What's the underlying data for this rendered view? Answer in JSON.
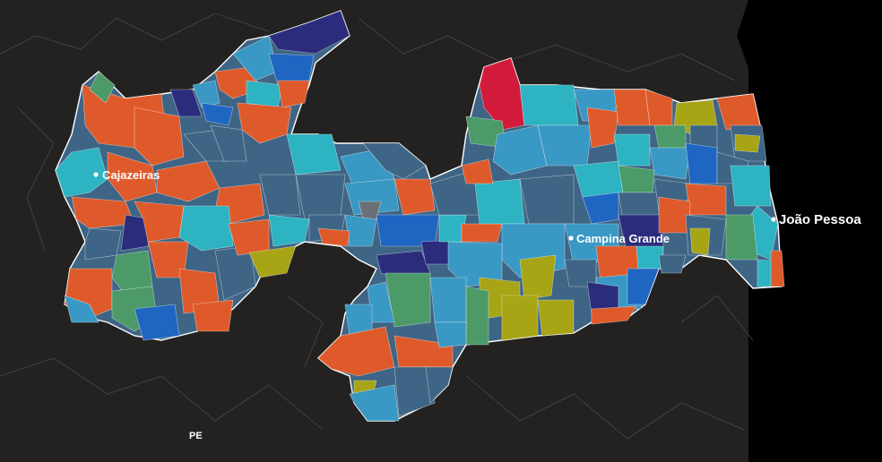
{
  "map": {
    "cities": [
      {
        "name": "Cajazeiras",
        "size": "normal"
      },
      {
        "name": "Campina Grande",
        "size": "normal"
      },
      {
        "name": "João Pessoa",
        "size": "big"
      }
    ],
    "state_label": "PE",
    "colors": {
      "background": "#232220",
      "ocean": "#000000",
      "orange": "#df5a2b",
      "slate": "#3e6585",
      "teal": "#2db3c2",
      "sky": "#3a98c4",
      "blue": "#1f66c2",
      "navy": "#2b2d7c",
      "green": "#4b9a68",
      "olive": "#a7a416",
      "red": "#d21b3a",
      "gray": "#6b7077"
    }
  }
}
